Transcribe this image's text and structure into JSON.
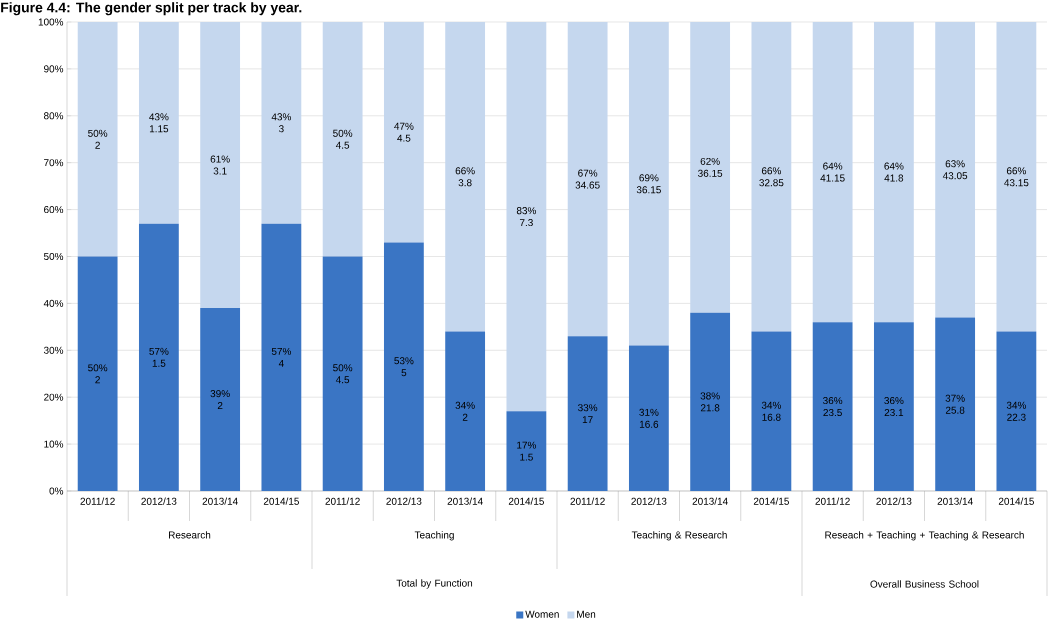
{
  "chart_data": {
    "type": "bar",
    "stacked": true,
    "title": "Figure 4.4: The gender split per track by year.",
    "categories": [
      "2011/12",
      "2012/13",
      "2013/14",
      "2014/15",
      "2011/12",
      "2012/13",
      "2013/14",
      "2014/15",
      "2011/12",
      "2012/13",
      "2013/14",
      "2014/15",
      "2011/12",
      "2012/13",
      "2013/14",
      "2014/15"
    ],
    "series": [
      {
        "name": "Women",
        "color": "#3a75c4",
        "values": [
          50,
          57,
          39,
          57,
          50,
          53,
          34,
          17,
          33,
          31,
          38,
          34,
          36,
          36,
          37,
          34
        ],
        "value_labels": [
          "50% 2",
          "57% 1.5",
          "39% 2",
          "57% 4",
          "50% 4.5",
          "53% 5",
          "34% 2",
          "17% 1.5",
          "33% 17",
          "31% 16.6",
          "38% 21.8",
          "34% 16.8",
          "36% 23.5",
          "36% 23.1",
          "37% 25.8",
          "34% 22.3"
        ]
      },
      {
        "name": "Men",
        "color": "#c5d7ee",
        "values": [
          50,
          43,
          61,
          43,
          50,
          47,
          66,
          83,
          67,
          69,
          62,
          66,
          64,
          64,
          63,
          66
        ],
        "value_labels": [
          "50% 2",
          "43% 1.15",
          "61% 3.1",
          "43% 3",
          "50% 4.5",
          "47% 4.5",
          "66% 3.8",
          "83% 7.3",
          "67% 34.65",
          "69% 36.15",
          "62% 36.15",
          "66% 32.85",
          "64% 41.15",
          "64% 41.8",
          "63% 43.05",
          "66% 43.15"
        ]
      }
    ],
    "ylim": [
      0,
      100
    ],
    "yticks": [
      {
        "value": 0,
        "label": "0%"
      },
      {
        "value": 10,
        "label": "10%"
      },
      {
        "value": 20,
        "label": "20%"
      },
      {
        "value": 30,
        "label": "30%"
      },
      {
        "value": 40,
        "label": "40%"
      },
      {
        "value": 50,
        "label": "50%"
      },
      {
        "value": 60,
        "label": "60%"
      },
      {
        "value": 70,
        "label": "70%"
      },
      {
        "value": 80,
        "label": "80%"
      },
      {
        "value": 90,
        "label": "90%"
      },
      {
        "value": 100,
        "label": "100%"
      }
    ],
    "grid": "y",
    "legend": "bottom",
    "annotations": [
      "Research",
      "Teaching",
      "Teaching & Research",
      "Reseach + Teaching + Teaching & Research",
      "Total by Function",
      "Overall Business School"
    ]
  }
}
